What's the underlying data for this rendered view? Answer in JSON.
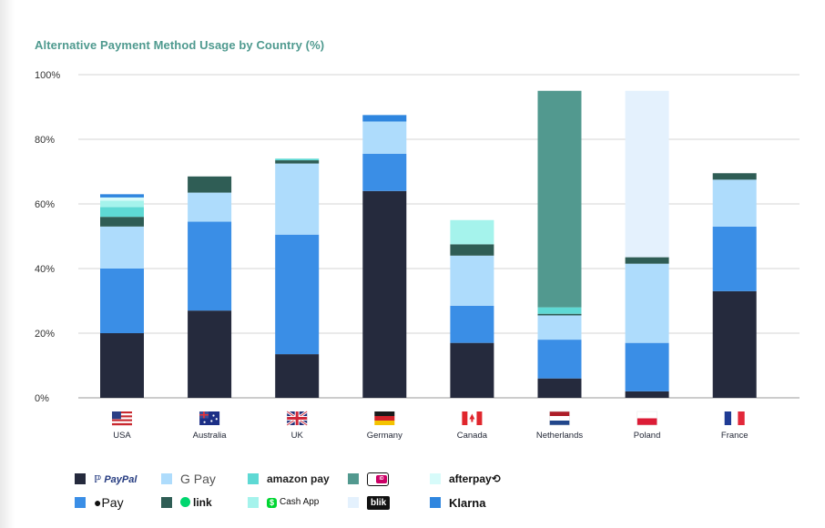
{
  "title": "Alternative Payment Method Usage by Country (%)",
  "chart_data": {
    "type": "bar",
    "stacked": true,
    "title": "Alternative Payment Method Usage by Country (%)",
    "xlabel": "",
    "ylabel": "",
    "ylim": [
      0,
      100
    ],
    "yticks": [
      "0%",
      "20%",
      "40%",
      "60%",
      "80%",
      "100%"
    ],
    "yticks_values": [
      0,
      20,
      40,
      60,
      80,
      100
    ],
    "grid": true,
    "legend_position": "bottom",
    "categories": [
      "USA",
      "Australia",
      "UK",
      "Germany",
      "Canada",
      "Netherlands",
      "Poland",
      "France"
    ],
    "flag_icons": [
      "usa-flag-icon",
      "australia-flag-icon",
      "uk-flag-icon",
      "germany-flag-icon",
      "canada-flag-icon",
      "netherlands-flag-icon",
      "poland-flag-icon",
      "france-flag-icon"
    ],
    "series": [
      {
        "name": "PayPal",
        "color": "#252a3d",
        "values": [
          20,
          27,
          13.5,
          64,
          17,
          6,
          2,
          33
        ]
      },
      {
        "name": "Apple Pay",
        "color": "#3a8ee6",
        "values": [
          20,
          27.5,
          37,
          11.5,
          11.5,
          12,
          15,
          20
        ]
      },
      {
        "name": "G Pay",
        "color": "#aedcfc",
        "values": [
          13,
          9,
          22,
          10,
          15.5,
          7.5,
          24.5,
          14.5
        ]
      },
      {
        "name": "link",
        "color": "#2f5d55",
        "values": [
          3,
          5,
          1,
          0,
          3.5,
          0.5,
          2,
          2
        ]
      },
      {
        "name": "amazon pay",
        "color": "#5ed9d4",
        "values": [
          3,
          0,
          0.5,
          0,
          0,
          2,
          0,
          0
        ]
      },
      {
        "name": "Cash App",
        "color": "#a5f3ec",
        "values": [
          2,
          0,
          0,
          0,
          7.5,
          0,
          0,
          0
        ]
      },
      {
        "name": "iDEAL",
        "color": "#52998f",
        "values": [
          0,
          0,
          0,
          0,
          0,
          67,
          0,
          0
        ]
      },
      {
        "name": "blik",
        "color": "#e4f1fd",
        "values": [
          0,
          0,
          0,
          0,
          0,
          0,
          51.5,
          0
        ]
      },
      {
        "name": "afterpay",
        "color": "#d7fbfa",
        "values": [
          1,
          0,
          0,
          0,
          0,
          0,
          0,
          0
        ]
      },
      {
        "name": "Klarna",
        "color": "#2f86df",
        "values": [
          1,
          0,
          0,
          2,
          0,
          0,
          0,
          0
        ]
      }
    ]
  },
  "legend": {
    "items": [
      {
        "key": "PayPal",
        "text": "PayPal",
        "icon": "paypal-logo-icon",
        "color": "#252a3d"
      },
      {
        "key": "G Pay",
        "text": "G Pay",
        "icon": "google-pay-logo-icon",
        "color": "#aedcfc"
      },
      {
        "key": "amazon pay",
        "text": "amazon pay",
        "icon": "amazon-pay-logo-icon",
        "color": "#5ed9d4"
      },
      {
        "key": "iDEAL",
        "text": "iDEAL",
        "icon": "ideal-logo-icon",
        "color": "#52998f"
      },
      {
        "key": "afterpay",
        "text": "afterpay",
        "icon": "afterpay-logo-icon",
        "color": "#d7fbfa"
      },
      {
        "key": "Apple Pay",
        "text": "Pay",
        "icon": "apple-pay-logo-icon",
        "color": "#3a8ee6"
      },
      {
        "key": "link",
        "text": "link",
        "icon": "link-logo-icon",
        "color": "#2f5d55"
      },
      {
        "key": "Cash App",
        "text": "Cash App",
        "icon": "cash-app-logo-icon",
        "color": "#a5f3ec"
      },
      {
        "key": "blik",
        "text": "blik",
        "icon": "blik-logo-icon",
        "color": "#e4f1fd"
      },
      {
        "key": "Klarna",
        "text": "Klarna",
        "icon": "klarna-logo-icon",
        "color": "#2f86df"
      }
    ]
  }
}
